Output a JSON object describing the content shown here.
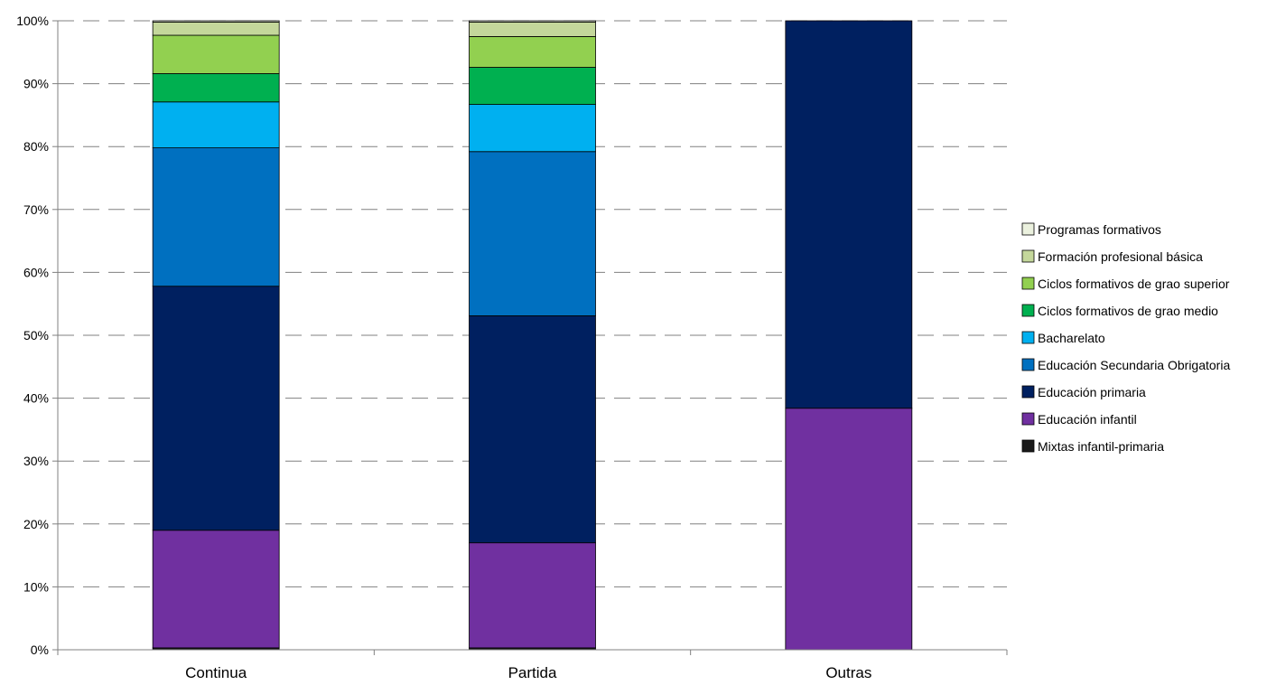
{
  "chart_data": {
    "type": "bar",
    "stacked": true,
    "percent": true,
    "categories": [
      "Continua",
      "Partida",
      "Outras"
    ],
    "series": [
      {
        "name": "Mixtas infantil-primaria",
        "color": "#1a1a1a",
        "values": [
          0.3,
          0.3,
          0
        ]
      },
      {
        "name": "Educación infantil",
        "color": "#7030a0",
        "values": [
          18.7,
          16.7,
          38.4
        ]
      },
      {
        "name": "Educación primaria",
        "color": "#002060",
        "values": [
          38.8,
          36.1,
          61.6
        ]
      },
      {
        "name": "Educación Secundaria Obrigatoria",
        "color": "#0070c0",
        "values": [
          22.0,
          26.1,
          0
        ]
      },
      {
        "name": "Bacharelato",
        "color": "#00b0f0",
        "values": [
          7.3,
          7.5,
          0
        ]
      },
      {
        "name": "Ciclos formativos de grao medio",
        "color": "#00b050",
        "values": [
          4.5,
          5.9,
          0
        ]
      },
      {
        "name": "Ciclos formativos de grao superior",
        "color": "#92d050",
        "values": [
          6.1,
          4.9,
          0
        ]
      },
      {
        "name": "Formación profesional básica",
        "color": "#c4d79b",
        "values": [
          2.1,
          2.3,
          0
        ]
      },
      {
        "name": "Programas formativos",
        "color": "#ebf1de",
        "values": [
          0.2,
          0.2,
          0
        ]
      }
    ],
    "ylim": [
      0,
      100
    ],
    "yticks": [
      "0%",
      "10%",
      "20%",
      "30%",
      "40%",
      "50%",
      "60%",
      "70%",
      "80%",
      "90%",
      "100%"
    ],
    "grid": "dashed-horizontal",
    "legend_position": "right"
  }
}
